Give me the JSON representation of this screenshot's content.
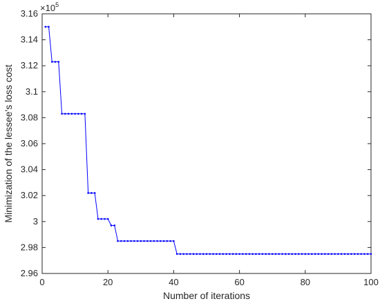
{
  "chart_data": {
    "type": "line",
    "title": "",
    "xlabel": "Number of iterations",
    "ylabel": "Minimization of the lessee's loss cost",
    "y_exponent_label": "×10",
    "y_exponent_power": "5",
    "xlim": [
      0,
      100
    ],
    "ylim": [
      2.96,
      3.16
    ],
    "x_ticks": [
      "0",
      "20",
      "40",
      "60",
      "80",
      "100"
    ],
    "y_ticks": [
      "2.96",
      "2.98",
      "3",
      "3.02",
      "3.04",
      "3.06",
      "3.08",
      "3.1",
      "3.12",
      "3.14",
      "3.16"
    ],
    "grid": false,
    "legend": "none",
    "series_color": "#0000ff",
    "series": [
      {
        "steps": [
          {
            "from": 1,
            "to": 2,
            "y": 3.15
          },
          {
            "from": 3,
            "to": 5,
            "y": 3.123
          },
          {
            "from": 6,
            "to": 13,
            "y": 3.083
          },
          {
            "from": 14,
            "to": 16,
            "y": 3.022
          },
          {
            "from": 17,
            "to": 19,
            "y": 3.002
          },
          {
            "from": 20,
            "to": 20,
            "y": 3.002
          },
          {
            "from": 21,
            "to": 22,
            "y": 2.997
          },
          {
            "from": 23,
            "to": 40,
            "y": 2.985
          },
          {
            "from": 41,
            "to": 100,
            "y": 2.975
          }
        ]
      }
    ]
  }
}
